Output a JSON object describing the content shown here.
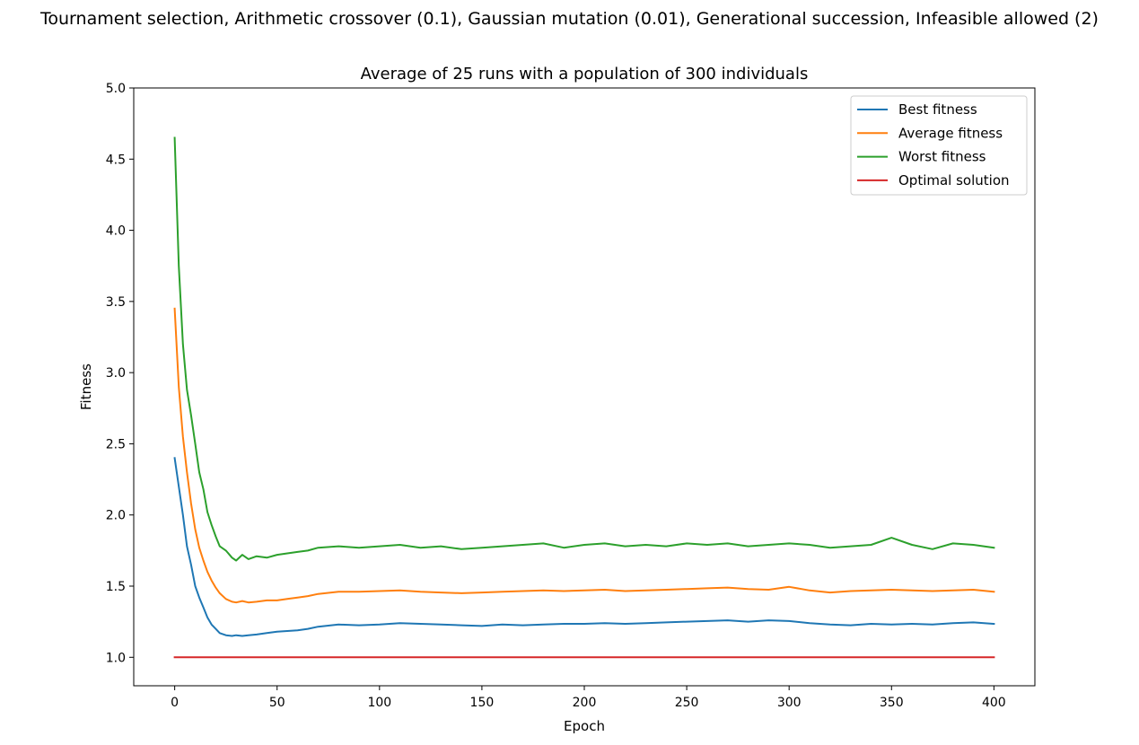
{
  "figure": {
    "suptitle": "Tournament selection, Arithmetic crossover (0.1), Gaussian mutation (0.01), Generational succession, Infeasible allowed (2)"
  },
  "chart_data": {
    "type": "line",
    "title": "Average of 25 runs with a population of 300 individuals",
    "xlabel": "Epoch",
    "ylabel": "Fitness",
    "xlim": [
      -20,
      420
    ],
    "ylim": [
      0.8,
      5.0
    ],
    "xticks": [
      0,
      50,
      100,
      150,
      200,
      250,
      300,
      350,
      400
    ],
    "yticks": [
      1.0,
      1.5,
      2.0,
      2.5,
      3.0,
      3.5,
      4.0,
      4.5,
      5.0
    ],
    "grid": false,
    "legend_position": "top-right",
    "series": [
      {
        "name": "Best fitness",
        "color": "#1f77b4",
        "x": [
          0,
          2,
          4,
          6,
          8,
          10,
          12,
          14,
          16,
          18,
          20,
          22,
          25,
          28,
          30,
          33,
          36,
          40,
          45,
          50,
          55,
          60,
          65,
          70,
          80,
          90,
          100,
          110,
          120,
          130,
          140,
          150,
          160,
          170,
          180,
          190,
          200,
          210,
          220,
          230,
          240,
          250,
          260,
          270,
          280,
          290,
          300,
          310,
          320,
          330,
          340,
          350,
          360,
          370,
          380,
          390,
          400
        ],
        "y": [
          2.4,
          2.2,
          2.0,
          1.78,
          1.65,
          1.5,
          1.42,
          1.35,
          1.28,
          1.23,
          1.2,
          1.17,
          1.155,
          1.15,
          1.155,
          1.15,
          1.155,
          1.16,
          1.17,
          1.18,
          1.185,
          1.19,
          1.2,
          1.215,
          1.23,
          1.225,
          1.23,
          1.24,
          1.235,
          1.23,
          1.225,
          1.22,
          1.23,
          1.225,
          1.23,
          1.235,
          1.235,
          1.24,
          1.235,
          1.24,
          1.245,
          1.25,
          1.255,
          1.26,
          1.25,
          1.26,
          1.255,
          1.24,
          1.23,
          1.225,
          1.235,
          1.23,
          1.235,
          1.23,
          1.24,
          1.245,
          1.235
        ]
      },
      {
        "name": "Average fitness",
        "color": "#ff7f0e",
        "x": [
          0,
          2,
          4,
          6,
          8,
          10,
          12,
          14,
          16,
          18,
          20,
          22,
          25,
          28,
          30,
          33,
          36,
          40,
          45,
          50,
          55,
          60,
          65,
          70,
          80,
          90,
          100,
          110,
          120,
          130,
          140,
          150,
          160,
          170,
          180,
          190,
          200,
          210,
          220,
          230,
          240,
          250,
          260,
          270,
          280,
          290,
          300,
          310,
          320,
          330,
          340,
          350,
          360,
          370,
          380,
          390,
          400
        ],
        "y": [
          3.45,
          2.9,
          2.55,
          2.3,
          2.08,
          1.9,
          1.77,
          1.68,
          1.6,
          1.54,
          1.49,
          1.45,
          1.41,
          1.39,
          1.385,
          1.395,
          1.385,
          1.39,
          1.4,
          1.4,
          1.41,
          1.42,
          1.43,
          1.445,
          1.46,
          1.46,
          1.465,
          1.47,
          1.46,
          1.455,
          1.45,
          1.455,
          1.46,
          1.465,
          1.47,
          1.465,
          1.47,
          1.475,
          1.465,
          1.47,
          1.475,
          1.48,
          1.485,
          1.49,
          1.48,
          1.475,
          1.495,
          1.47,
          1.455,
          1.465,
          1.47,
          1.475,
          1.47,
          1.465,
          1.47,
          1.475,
          1.46
        ]
      },
      {
        "name": "Worst fitness",
        "color": "#2ca02c",
        "x": [
          0,
          2,
          4,
          6,
          8,
          10,
          12,
          14,
          16,
          18,
          20,
          22,
          25,
          28,
          30,
          33,
          36,
          40,
          45,
          50,
          55,
          60,
          65,
          70,
          80,
          90,
          100,
          110,
          120,
          130,
          140,
          150,
          160,
          170,
          180,
          190,
          200,
          210,
          220,
          230,
          240,
          250,
          260,
          270,
          280,
          290,
          300,
          310,
          320,
          330,
          340,
          350,
          360,
          370,
          380,
          390,
          400
        ],
        "y": [
          4.65,
          3.75,
          3.2,
          2.88,
          2.7,
          2.5,
          2.3,
          2.18,
          2.02,
          1.93,
          1.85,
          1.78,
          1.75,
          1.7,
          1.68,
          1.72,
          1.69,
          1.71,
          1.7,
          1.72,
          1.73,
          1.74,
          1.75,
          1.77,
          1.78,
          1.77,
          1.78,
          1.79,
          1.77,
          1.78,
          1.76,
          1.77,
          1.78,
          1.79,
          1.8,
          1.77,
          1.79,
          1.8,
          1.78,
          1.79,
          1.78,
          1.8,
          1.79,
          1.8,
          1.78,
          1.79,
          1.8,
          1.79,
          1.77,
          1.78,
          1.79,
          1.84,
          1.79,
          1.76,
          1.8,
          1.79,
          1.77
        ]
      },
      {
        "name": "Optimal solution",
        "color": "#d62728",
        "x": [
          0,
          400
        ],
        "y": [
          1.0,
          1.0
        ]
      }
    ]
  }
}
